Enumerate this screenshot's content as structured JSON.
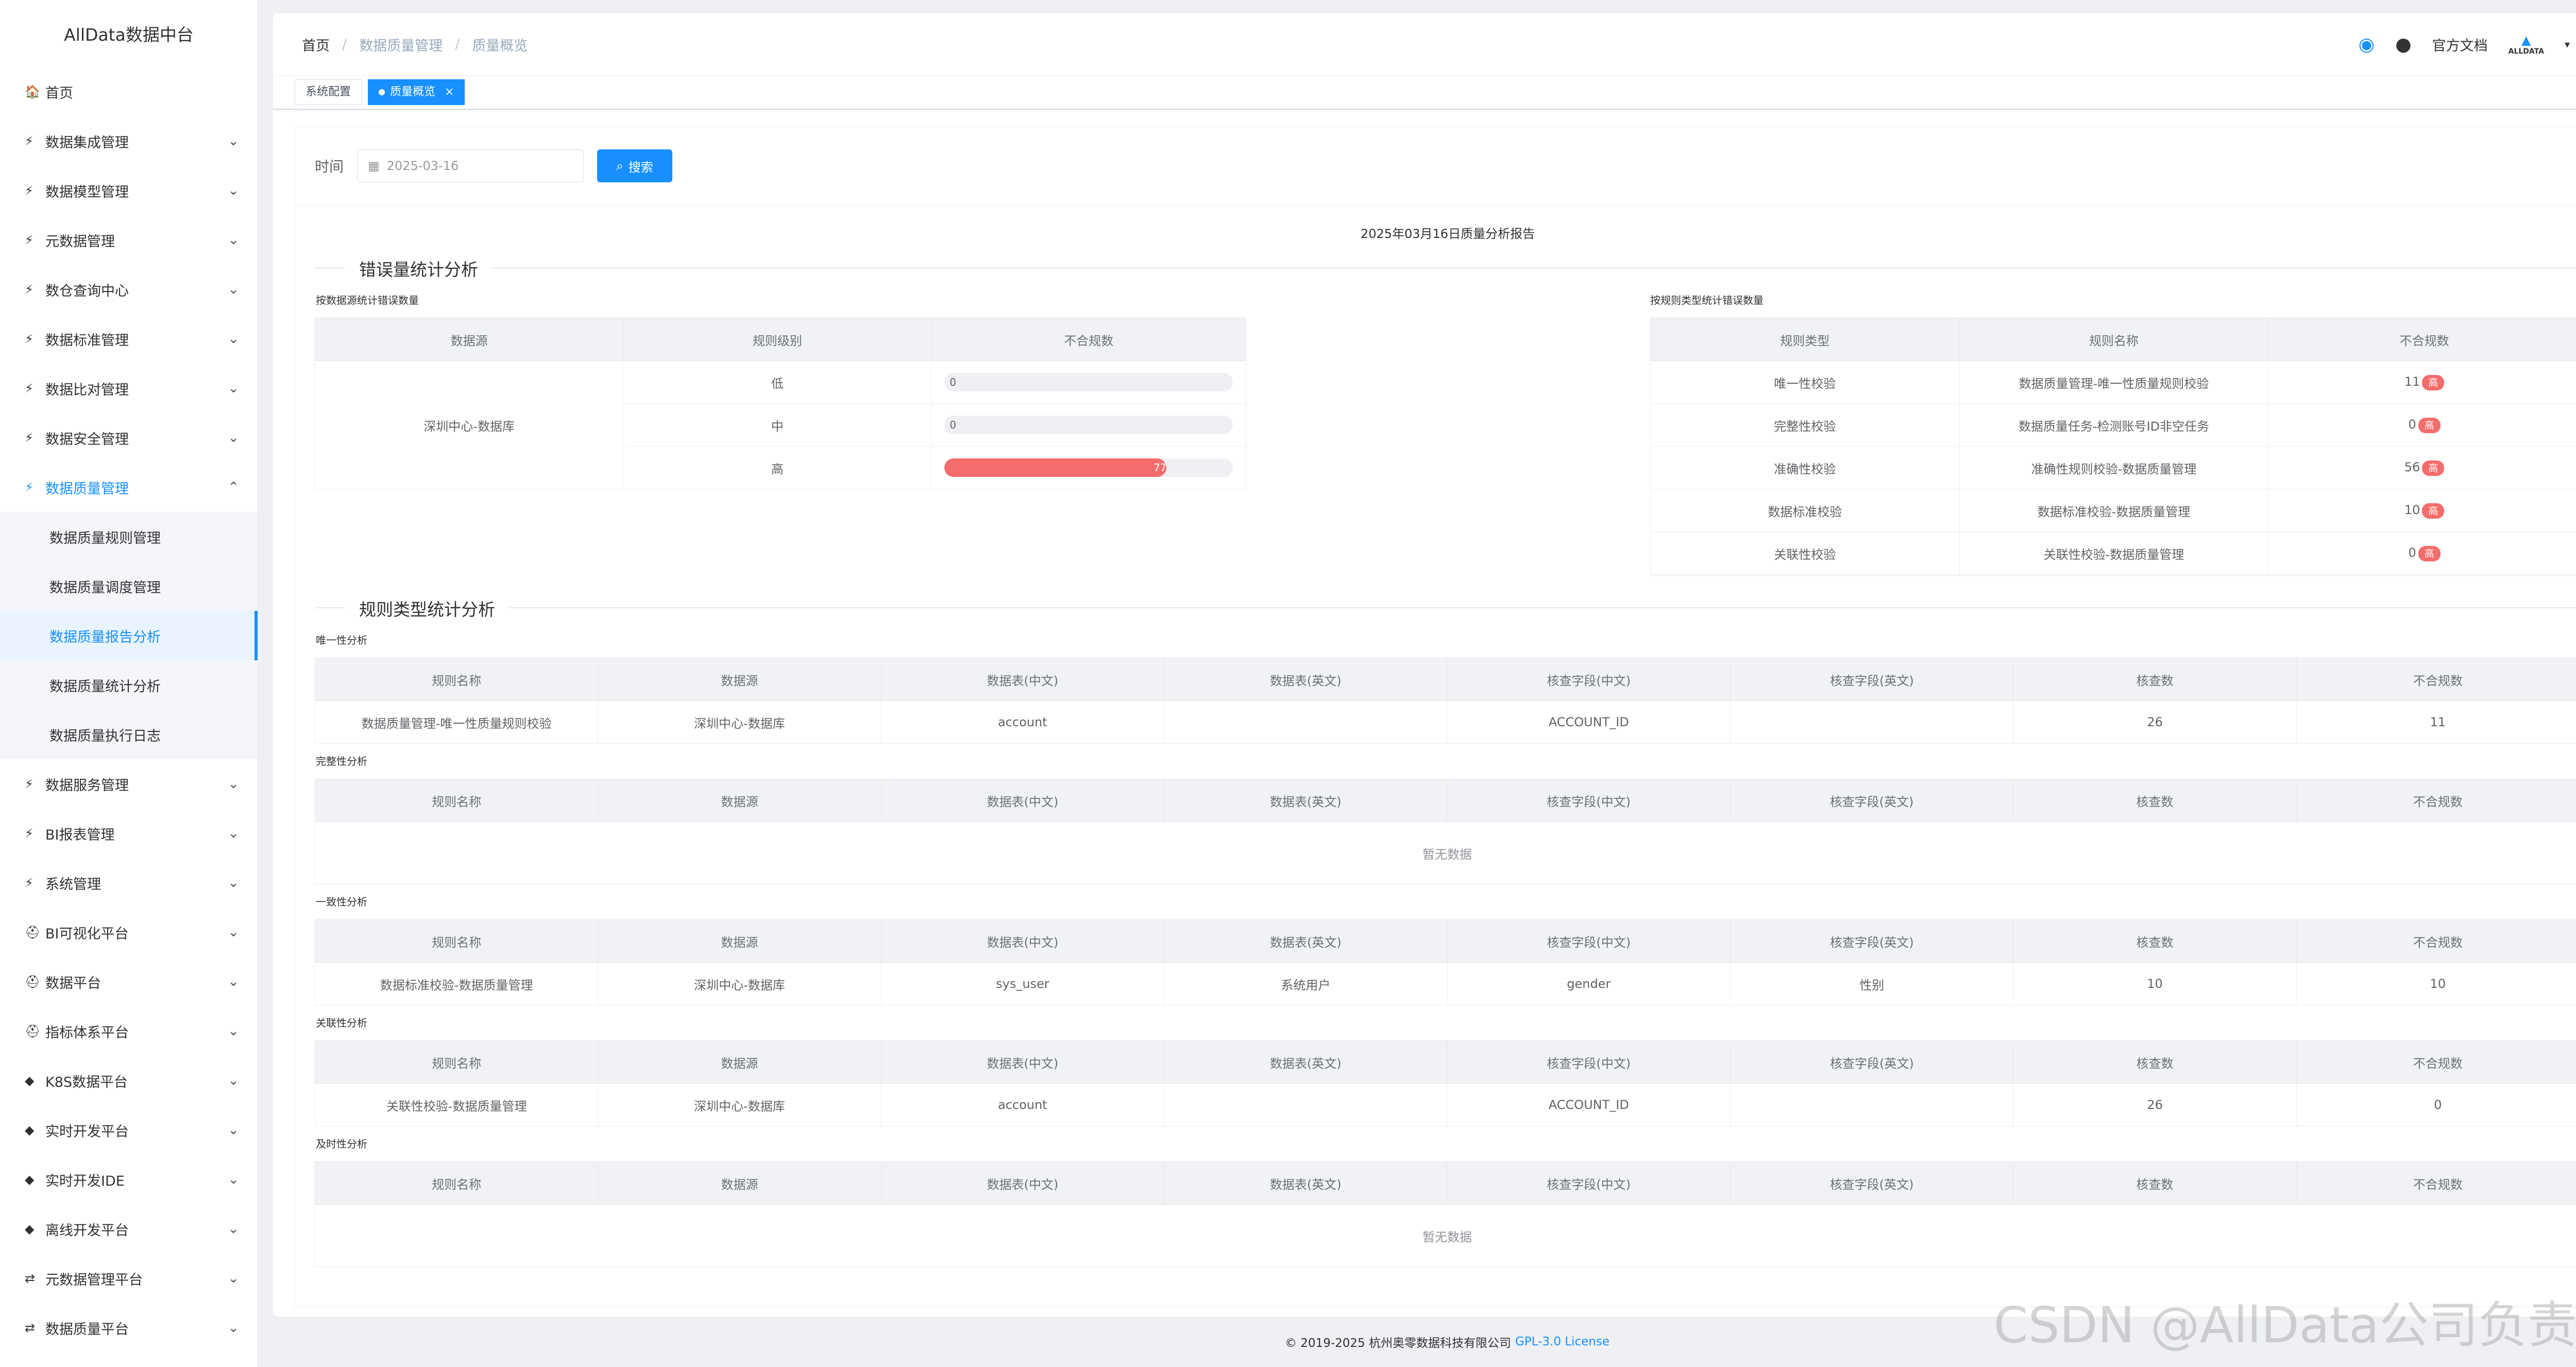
{
  "brand": "AllData数据中台",
  "sidebar": {
    "home": "首页",
    "items": [
      {
        "label": "数据集成管理"
      },
      {
        "label": "数据模型管理"
      },
      {
        "label": "元数据管理"
      },
      {
        "label": "数仓查询中心"
      },
      {
        "label": "数据标准管理"
      },
      {
        "label": "数据比对管理"
      },
      {
        "label": "数据安全管理"
      },
      {
        "label": "数据质量管理"
      }
    ],
    "sub_items": [
      {
        "label": "数据质量规则管理"
      },
      {
        "label": "数据质量调度管理"
      },
      {
        "label": "数据质量报告分析"
      },
      {
        "label": "数据质量统计分析"
      },
      {
        "label": "数据质量执行日志"
      }
    ],
    "items_after": [
      {
        "label": "数据服务管理"
      },
      {
        "label": "BI报表管理"
      },
      {
        "label": "系统管理"
      },
      {
        "label": "BI可视化平台"
      },
      {
        "label": "数据平台"
      },
      {
        "label": "指标体系平台"
      },
      {
        "label": "K8S数据平台"
      },
      {
        "label": "实时开发平台"
      },
      {
        "label": "实时开发IDE"
      },
      {
        "label": "离线开发平台"
      },
      {
        "label": "元数据管理平台"
      },
      {
        "label": "数据质量平台"
      }
    ]
  },
  "breadcrumb": [
    "首页",
    "数据质量管理",
    "质量概览"
  ],
  "topbar": {
    "docs": "官方文档",
    "avatar_text": "ALLDATA"
  },
  "tags": [
    "系统配置",
    "质量概览"
  ],
  "search": {
    "label": "时间",
    "date": "2025-03-16",
    "button": "搜索"
  },
  "report_title": "2025年03月16日质量分析报告",
  "section1": "错误量统计分析",
  "by_source": {
    "title": "按数据源统计错误数量",
    "headers": [
      "数据源",
      "规则级别",
      "不合规数"
    ],
    "source": "深圳中心-数据库",
    "rows": [
      {
        "level": "低",
        "count": "0",
        "fraction": 0
      },
      {
        "level": "中",
        "count": "0",
        "fraction": 0
      },
      {
        "level": "高",
        "count": "77",
        "fraction": 0.77
      }
    ]
  },
  "by_type": {
    "title": "按规则类型统计错误数量",
    "headers": [
      "规则类型",
      "规则名称",
      "不合规数"
    ],
    "badge": "高",
    "rows": [
      {
        "type": "唯一性校验",
        "name": "数据质量管理-唯一性质量规则校验",
        "count": "11"
      },
      {
        "type": "完整性校验",
        "name": "数据质量任务-检测账号ID非空任务",
        "count": "0"
      },
      {
        "type": "准确性校验",
        "name": "准确性规则校验-数据质量管理",
        "count": "56"
      },
      {
        "type": "数据标准校验",
        "name": "数据标准校验-数据质量管理",
        "count": "10"
      },
      {
        "type": "关联性校验",
        "name": "关联性校验-数据质量管理",
        "count": "0"
      }
    ]
  },
  "section2": "规则类型统计分析",
  "detail_headers": [
    "规则名称",
    "数据源",
    "数据表(中文)",
    "数据表(英文)",
    "核查字段(中文)",
    "核查字段(英文)",
    "核查数",
    "不合规数"
  ],
  "empty_text": "暂无数据",
  "detail_tables": [
    {
      "title": "唯一性分析",
      "rows": [
        [
          "数据质量管理-唯一性质量规则校验",
          "深圳中心-数据库",
          "account",
          "",
          "ACCOUNT_ID",
          "",
          "26",
          "11"
        ]
      ]
    },
    {
      "title": "完整性分析",
      "rows": []
    },
    {
      "title": "一致性分析",
      "rows": [
        [
          "数据标准校验-数据质量管理",
          "深圳中心-数据库",
          "sys_user",
          "系统用户",
          "gender",
          "性别",
          "10",
          "10"
        ]
      ]
    },
    {
      "title": "关联性分析",
      "rows": [
        [
          "关联性校验-数据质量管理",
          "深圳中心-数据库",
          "account",
          "",
          "ACCOUNT_ID",
          "",
          "26",
          "0"
        ]
      ]
    },
    {
      "title": "及时性分析",
      "rows": []
    }
  ],
  "footer": {
    "text": "© 2019-2025 杭州奥零数据科技有限公司",
    "license": "GPL-3.0 License"
  },
  "watermark": "CSDN @AllData公司负责人",
  "colors": {
    "accent": "#1890ff",
    "danger": "#f56c6c"
  }
}
